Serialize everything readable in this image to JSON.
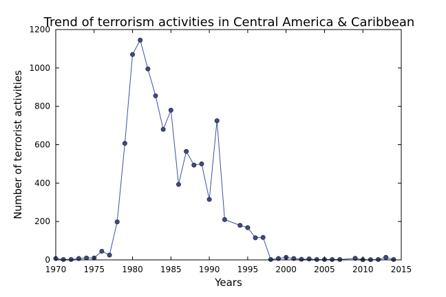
{
  "chart_data": {
    "type": "line",
    "title": "Trend of terrorism activities in Central America & Caribbean",
    "xlabel": "Years",
    "ylabel": "Number of terrorist activities",
    "xlim": [
      1970,
      2015
    ],
    "ylim": [
      0,
      1200
    ],
    "xticks": [
      "1970",
      "1975",
      "1980",
      "1985",
      "1990",
      "1995",
      "2000",
      "2005",
      "2010",
      "2015"
    ],
    "yticks": [
      "0",
      "200",
      "400",
      "600",
      "800",
      "1000",
      "1200"
    ],
    "grid": false,
    "line_color": "#3b4fa8",
    "marker_color": "#3b4a8c",
    "series": [
      {
        "x": [
          1970,
          1971,
          1972,
          1973,
          1974,
          1975,
          1976,
          1977,
          1978,
          1979,
          1980,
          1981,
          1982,
          1983,
          1984,
          1985,
          1986,
          1987,
          1988,
          1989,
          1990,
          1991,
          1992,
          1994,
          1995,
          1996,
          1997,
          1998,
          1999,
          2000,
          2001,
          2002,
          2003,
          2004,
          2005,
          2006,
          2007,
          2009,
          2010,
          2011,
          2012,
          2013,
          2014
        ],
        "values": [
          7,
          2,
          2,
          7,
          10,
          10,
          45,
          25,
          198,
          607,
          1070,
          1145,
          995,
          855,
          680,
          780,
          393,
          565,
          494,
          500,
          315,
          725,
          210,
          180,
          168,
          115,
          117,
          2,
          7,
          13,
          7,
          3,
          5,
          2,
          2,
          2,
          2,
          8,
          1,
          1,
          2,
          13,
          2
        ]
      }
    ]
  }
}
